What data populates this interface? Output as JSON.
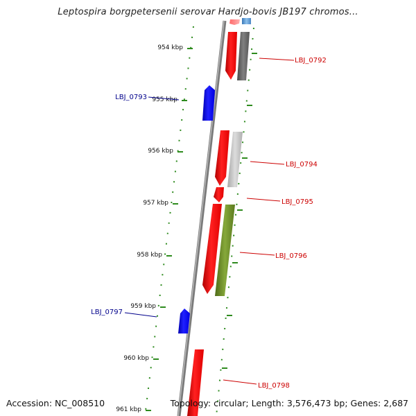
{
  "title": "Leptospira borgpetersenii serovar Hardjo-bovis JB197 chromos...",
  "footer": {
    "accession": "Accession: NC_008510",
    "topology": "Topology: circular; Length: 3,576,473 bp; Genes: 2,687"
  },
  "ruler": {
    "ticks": [
      {
        "label": "954 kbp"
      },
      {
        "label": "955 kbp"
      },
      {
        "label": "956 kbp"
      },
      {
        "label": "957 kbp"
      },
      {
        "label": "958 kbp"
      },
      {
        "label": "959 kbp"
      },
      {
        "label": "960 kbp"
      },
      {
        "label": "961 kbp"
      }
    ]
  },
  "genes": [
    {
      "label": "LBJ_0792",
      "strand": "forward",
      "color": "#cc0000"
    },
    {
      "label": "LBJ_0793",
      "strand": "reverse",
      "color": "#00008b"
    },
    {
      "label": "LBJ_0794",
      "strand": "forward",
      "color": "#cc0000"
    },
    {
      "label": "LBJ_0795",
      "strand": "forward",
      "color": "#cc0000"
    },
    {
      "label": "LBJ_0796",
      "strand": "forward",
      "color": "#cc0000"
    },
    {
      "label": "LBJ_0797",
      "strand": "reverse",
      "color": "#00008b"
    },
    {
      "label": "LBJ_0798",
      "strand": "forward",
      "color": "#cc0000"
    }
  ],
  "colors": {
    "backbone": "#888888",
    "forward_feature": "#ff0000",
    "reverse_feature": "#0000ff",
    "ruler": "#2e8b1e",
    "cog_dark_gray": "#666666",
    "cog_light_gray": "#c4c4c4",
    "cog_olive": "#6b8e23",
    "cog_blue": "#5b9bd5"
  }
}
